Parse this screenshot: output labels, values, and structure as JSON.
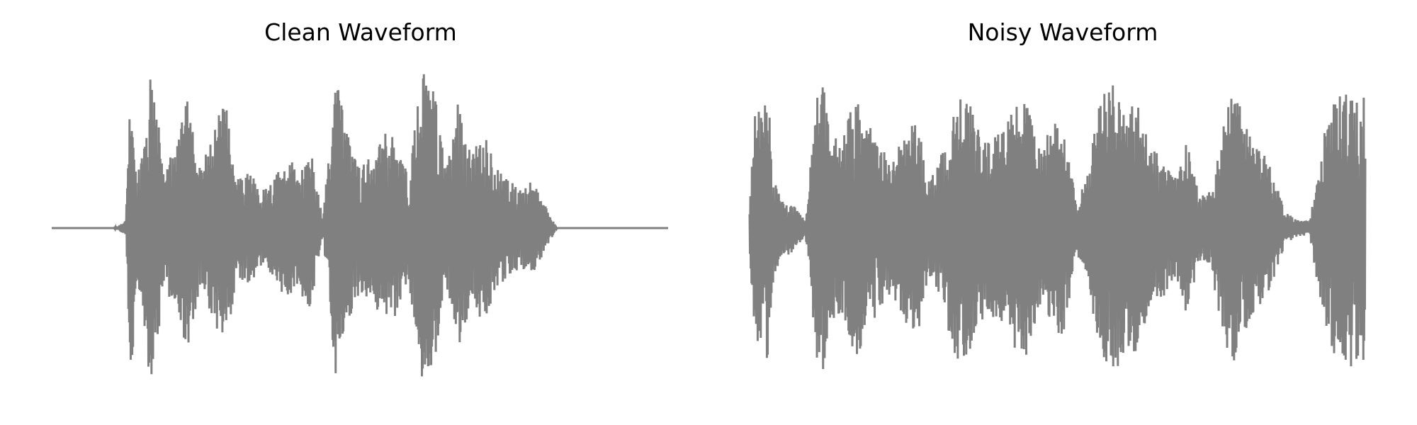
{
  "chart_data": [
    {
      "type": "line",
      "title": "Clean Waveform",
      "xlabel": "",
      "ylabel": "",
      "axes_visible": false,
      "grid": false,
      "legend": "none",
      "line_color": "#808080",
      "xlim": [
        0,
        1
      ],
      "ylim": [
        -1.0,
        1.0
      ],
      "amplitude_profile": {
        "time_fraction": [
          0.0,
          0.1,
          0.115,
          0.12,
          0.125,
          0.13,
          0.135,
          0.14,
          0.145,
          0.16,
          0.175,
          0.18,
          0.2,
          0.22,
          0.24,
          0.26,
          0.28,
          0.3,
          0.32,
          0.34,
          0.36,
          0.38,
          0.4,
          0.42,
          0.44,
          0.46,
          0.48,
          0.5,
          0.52,
          0.54,
          0.56,
          0.58,
          0.6,
          0.62,
          0.64,
          0.66,
          0.68,
          0.7,
          0.72,
          0.74,
          0.76,
          0.78,
          0.8,
          0.82,
          1.0
        ],
        "envelope": [
          0.0,
          0.0,
          0.03,
          0.05,
          0.6,
          0.97,
          0.5,
          0.35,
          0.45,
          0.98,
          0.6,
          0.35,
          0.5,
          0.8,
          0.4,
          0.55,
          0.85,
          0.3,
          0.35,
          0.25,
          0.3,
          0.45,
          0.4,
          0.5,
          0.05,
          0.95,
          0.6,
          0.4,
          0.45,
          0.6,
          0.55,
          0.35,
          0.98,
          0.9,
          0.35,
          0.8,
          0.45,
          0.6,
          0.4,
          0.3,
          0.25,
          0.3,
          0.15,
          0.0,
          0.0
        ]
      }
    },
    {
      "type": "line",
      "title": "Noisy Waveform",
      "xlabel": "",
      "ylabel": "",
      "axes_visible": false,
      "grid": false,
      "legend": "none",
      "line_color": "#808080",
      "xlim": [
        0,
        1
      ],
      "ylim": [
        -1.0,
        1.0
      ],
      "amplitude_profile": {
        "time_fraction": [
          0.0,
          0.01,
          0.02,
          0.03,
          0.04,
          0.05,
          0.07,
          0.09,
          0.11,
          0.12,
          0.13,
          0.15,
          0.17,
          0.19,
          0.21,
          0.23,
          0.25,
          0.27,
          0.29,
          0.31,
          0.33,
          0.35,
          0.37,
          0.39,
          0.41,
          0.43,
          0.45,
          0.47,
          0.49,
          0.51,
          0.53,
          0.55,
          0.57,
          0.59,
          0.61,
          0.63,
          0.65,
          0.67,
          0.69,
          0.71,
          0.73,
          0.75,
          0.77,
          0.79,
          0.81,
          0.83,
          0.85,
          0.87,
          0.89,
          0.91,
          0.93,
          0.95,
          0.97,
          0.99,
          1.0
        ],
        "envelope": [
          0.15,
          0.8,
          0.7,
          0.85,
          0.3,
          0.2,
          0.15,
          0.05,
          0.85,
          0.9,
          0.6,
          0.55,
          0.85,
          0.7,
          0.5,
          0.45,
          0.55,
          0.75,
          0.3,
          0.45,
          0.8,
          0.85,
          0.65,
          0.55,
          0.6,
          0.75,
          0.8,
          0.5,
          0.65,
          0.7,
          0.15,
          0.35,
          0.85,
          0.95,
          0.75,
          0.8,
          0.5,
          0.45,
          0.3,
          0.55,
          0.2,
          0.25,
          0.75,
          0.85,
          0.6,
          0.5,
          0.35,
          0.1,
          0.05,
          0.05,
          0.55,
          0.8,
          0.9,
          0.8,
          0.85
        ]
      }
    }
  ]
}
